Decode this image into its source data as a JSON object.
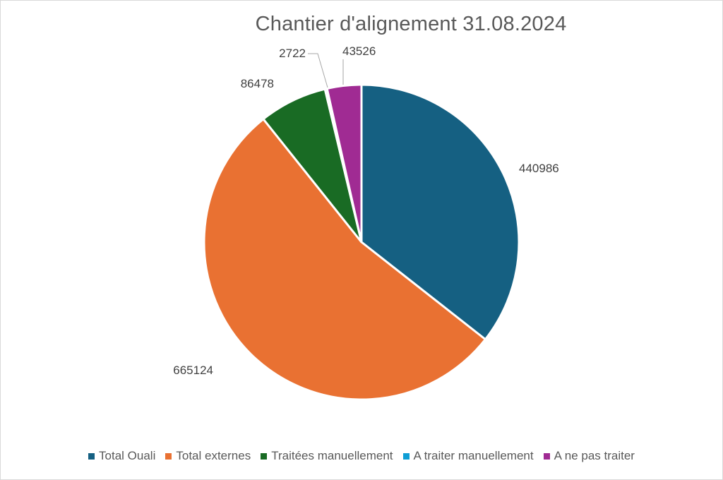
{
  "chart_data": {
    "type": "pie",
    "title": "Chantier d'alignement 31.08.2024",
    "categories": [
      "Total Ouali",
      "Total externes",
      "Traitées manuellement",
      "A traiter manuellement",
      "A ne pas traiter"
    ],
    "values": [
      440986,
      665124,
      86478,
      2722,
      43526
    ],
    "colors": [
      "#156082",
      "#E97132",
      "#196B24",
      "#0F9ED5",
      "#A02B93"
    ],
    "data_labels": [
      "440986",
      "665124",
      "86478",
      "2722",
      "43526"
    ],
    "legend_position": "bottom",
    "start_angle": "12 o'clock",
    "direction": "clockwise"
  }
}
